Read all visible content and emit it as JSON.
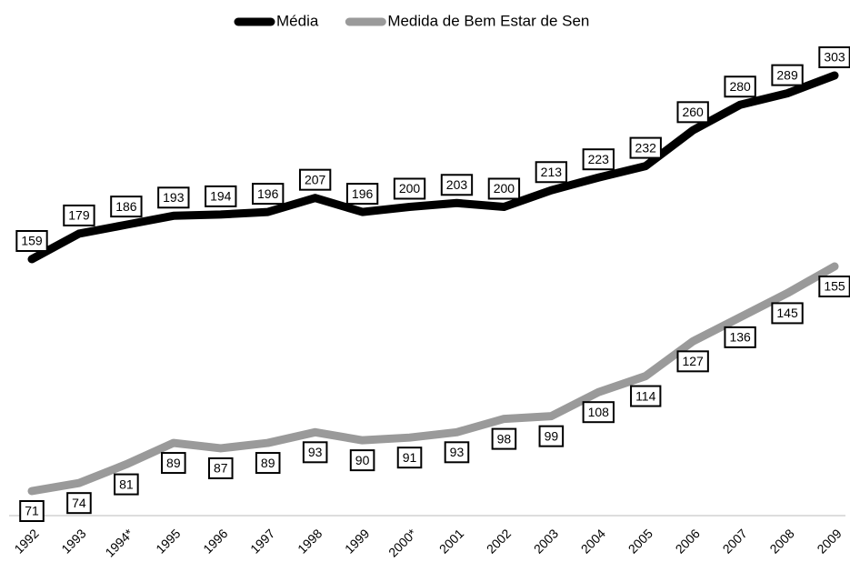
{
  "chart_data": {
    "type": "line",
    "categories": [
      "1992",
      "1993",
      "1994*",
      "1995",
      "1996",
      "1997",
      "1998",
      "1999",
      "2000*",
      "2001",
      "2002",
      "2003",
      "2004",
      "2005",
      "2006",
      "2007",
      "2008",
      "2009"
    ],
    "series": [
      {
        "name": "Média",
        "color": "#000000",
        "values": [
          159,
          179,
          186,
          193,
          194,
          196,
          207,
          196,
          200,
          203,
          200,
          213,
          223,
          232,
          260,
          280,
          289,
          303
        ]
      },
      {
        "name": "Medida de Bem Estar de Sen",
        "color": "#9a9a9a",
        "values": [
          71,
          74,
          81,
          89,
          87,
          89,
          93,
          90,
          91,
          93,
          98,
          99,
          108,
          114,
          127,
          136,
          145,
          155
        ]
      }
    ]
  }
}
